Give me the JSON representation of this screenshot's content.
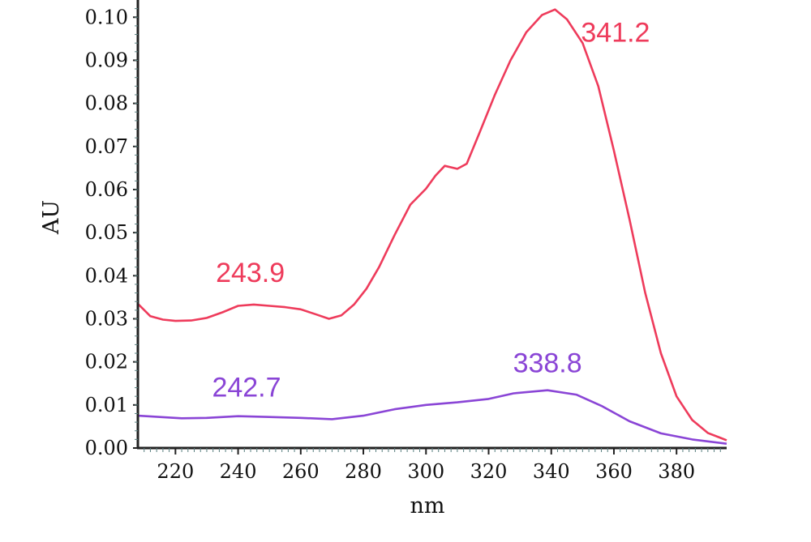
{
  "chart_data": {
    "type": "line",
    "xlabel": "nm",
    "ylabel": "AU",
    "xlim": [
      208,
      396
    ],
    "ylim": [
      0.0,
      0.104
    ],
    "x_ticks": [
      220,
      240,
      260,
      280,
      300,
      320,
      340,
      360,
      380
    ],
    "x_tick_labels": [
      "220",
      "240",
      "260",
      "280",
      "300",
      "320",
      "340",
      "360",
      "380"
    ],
    "y_ticks": [
      0.0,
      0.01,
      0.02,
      0.03,
      0.04,
      0.05,
      0.06,
      0.07,
      0.08,
      0.09,
      0.1
    ],
    "y_tick_labels": [
      "0.00",
      "0.01",
      "0.02",
      "0.03",
      "0.04",
      "0.05",
      "0.06",
      "0.07",
      "0.08",
      "0.09",
      "0.10"
    ],
    "grid": false,
    "series": [
      {
        "color": "#ee3b5b",
        "points": [
          [
            208,
            0.0335
          ],
          [
            212,
            0.0306
          ],
          [
            216,
            0.0298
          ],
          [
            220,
            0.0295
          ],
          [
            225,
            0.0296
          ],
          [
            230,
            0.0302
          ],
          [
            235,
            0.0315
          ],
          [
            240,
            0.033
          ],
          [
            245,
            0.0333
          ],
          [
            250,
            0.033
          ],
          [
            255,
            0.0327
          ],
          [
            260,
            0.0322
          ],
          [
            265,
            0.031
          ],
          [
            269,
            0.03
          ],
          [
            273,
            0.0308
          ],
          [
            277,
            0.0333
          ],
          [
            281,
            0.037
          ],
          [
            285,
            0.042
          ],
          [
            290,
            0.0495
          ],
          [
            295,
            0.0565
          ],
          [
            300,
            0.0602
          ],
          [
            303,
            0.0632
          ],
          [
            306,
            0.0655
          ],
          [
            310,
            0.0648
          ],
          [
            313,
            0.066
          ],
          [
            317,
            0.073
          ],
          [
            322,
            0.082
          ],
          [
            327,
            0.09
          ],
          [
            332,
            0.0965
          ],
          [
            337,
            0.1005
          ],
          [
            341.2,
            0.1018
          ],
          [
            345,
            0.0995
          ],
          [
            350,
            0.094
          ],
          [
            355,
            0.084
          ],
          [
            360,
            0.069
          ],
          [
            365,
            0.053
          ],
          [
            370,
            0.036
          ],
          [
            375,
            0.022
          ],
          [
            380,
            0.012
          ],
          [
            385,
            0.0065
          ],
          [
            390,
            0.0035
          ],
          [
            396,
            0.0018
          ]
        ]
      },
      {
        "color": "#8a45d6",
        "points": [
          [
            208,
            0.0075
          ],
          [
            215,
            0.0072
          ],
          [
            222,
            0.0069
          ],
          [
            230,
            0.007
          ],
          [
            240,
            0.0074
          ],
          [
            250,
            0.0072
          ],
          [
            260,
            0.007
          ],
          [
            270,
            0.0067
          ],
          [
            280,
            0.0075
          ],
          [
            290,
            0.009
          ],
          [
            300,
            0.01
          ],
          [
            310,
            0.0106
          ],
          [
            320,
            0.0114
          ],
          [
            328,
            0.0127
          ],
          [
            338.8,
            0.0134
          ],
          [
            348,
            0.0124
          ],
          [
            356,
            0.0098
          ],
          [
            365,
            0.0062
          ],
          [
            375,
            0.0034
          ],
          [
            385,
            0.002
          ],
          [
            396,
            0.001
          ]
        ]
      }
    ],
    "annotations": [
      {
        "text": "341.2",
        "x": 341.2,
        "y": 0.1018,
        "color": "#ee3b5b"
      },
      {
        "text": "243.9",
        "x": 243.9,
        "y": 0.0333,
        "color": "#ee3b5b"
      },
      {
        "text": "338.8",
        "x": 338.8,
        "y": 0.0134,
        "color": "#8a45d6"
      },
      {
        "text": "242.7",
        "x": 242.7,
        "y": 0.0074,
        "color": "#8a45d6"
      }
    ]
  }
}
